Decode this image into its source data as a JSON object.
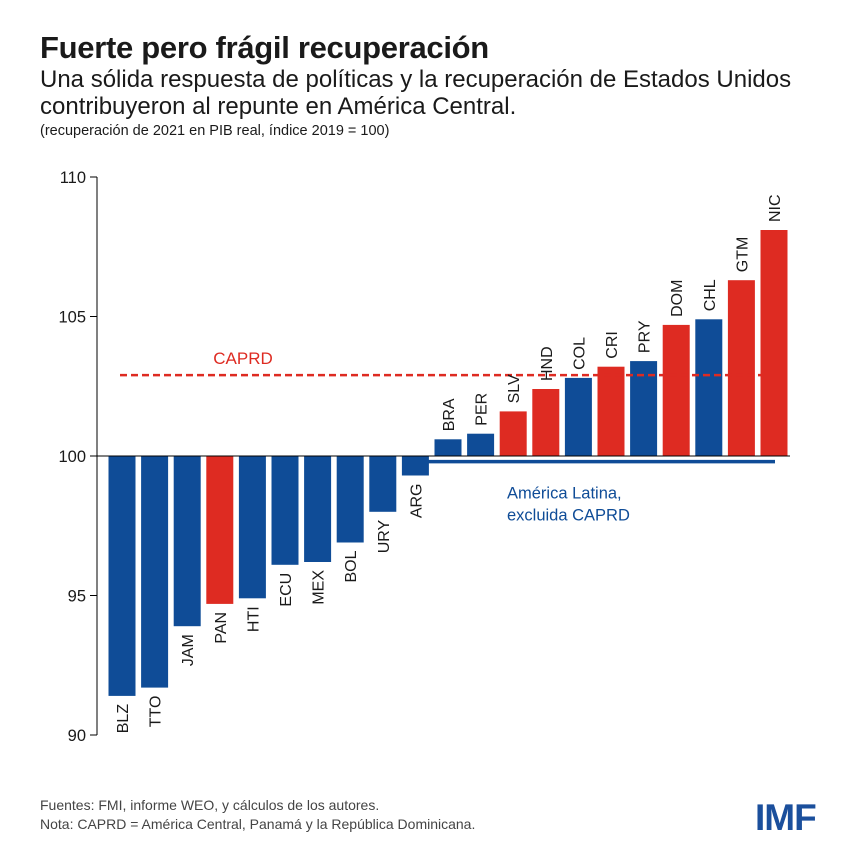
{
  "header": {
    "title": "Fuerte pero frágil recuperación",
    "subtitle": "Una sólida respuesta de políticas y la recuperación de Estados Unidos contribuyeron al repunte en América Central.",
    "note": "(recuperación de 2021 en PIB real, índice 2019 = 100)"
  },
  "footer": {
    "sources": "Fuentes: FMI, informe WEO, y cálculos de los autores.",
    "note": "Nota: CAPRD = América Central, Panamá y la República Dominicana."
  },
  "logo": {
    "text": "IMF"
  },
  "colors": {
    "blue": "#0f4c97",
    "red": "#de2b22",
    "axis": "#000000",
    "logo": "#1b4f9c"
  },
  "chart_data": {
    "type": "bar",
    "baseline": 100,
    "ylim": [
      90,
      110
    ],
    "yticks": [
      90,
      95,
      100,
      105,
      110
    ],
    "categories": [
      "BLZ",
      "TTO",
      "JAM",
      "PAN",
      "HTI",
      "ECU",
      "MEX",
      "BOL",
      "URY",
      "ARG",
      "BRA",
      "PER",
      "SLV",
      "HND",
      "COL",
      "CRI",
      "PRY",
      "DOM",
      "CHL",
      "GTM",
      "NIC"
    ],
    "values": [
      91.4,
      91.7,
      93.9,
      94.7,
      94.9,
      96.1,
      96.2,
      96.9,
      98.0,
      99.3,
      100.6,
      100.8,
      101.6,
      102.4,
      102.8,
      103.2,
      103.4,
      104.7,
      104.9,
      106.3,
      108.1
    ],
    "groups": [
      "other",
      "other",
      "other",
      "CAPRD",
      "other",
      "other",
      "other",
      "other",
      "other",
      "other",
      "other",
      "other",
      "CAPRD",
      "CAPRD",
      "other",
      "CAPRD",
      "other",
      "CAPRD",
      "other",
      "CAPRD",
      "CAPRD"
    ],
    "reference_lines": [
      {
        "name": "CAPRD",
        "value": 102.9,
        "style": "dashed",
        "color": "#de2b22"
      },
      {
        "name": "América Latina, excluida CAPRD",
        "label_lines": [
          "América Latina,",
          "excluida CAPRD"
        ],
        "value": 99.8,
        "style": "solid",
        "color": "#0f4c97"
      }
    ]
  }
}
